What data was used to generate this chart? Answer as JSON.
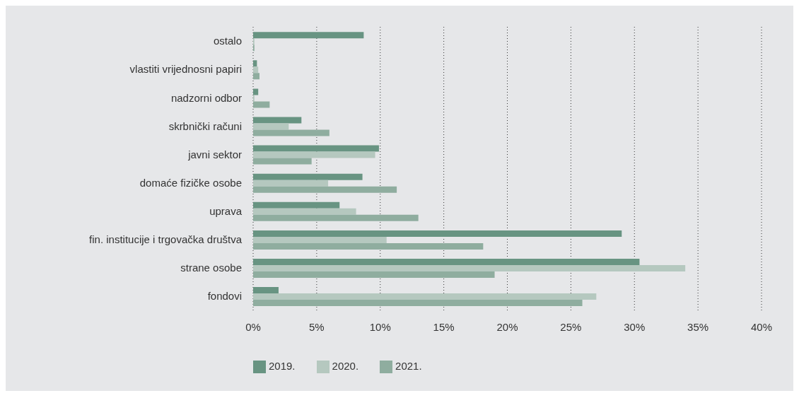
{
  "chart_data": {
    "type": "bar",
    "orientation": "horizontal",
    "categories": [
      "ostalo",
      "vlastiti vrijednosni papiri",
      "nadzorni odbor",
      "skrbnički računi",
      "javni sektor",
      "domaće fizičke osobe",
      "uprava",
      "fin. institucije i trgovačka društva",
      "strane osobe",
      "fondovi"
    ],
    "series": [
      {
        "name": "2019.",
        "color": "#689482",
        "values": [
          8.7,
          0.3,
          0.4,
          3.8,
          9.9,
          8.6,
          6.8,
          29.0,
          30.4,
          2.0
        ]
      },
      {
        "name": "2020.",
        "color": "#b5c8bf",
        "values": [
          0.1,
          0.4,
          0.1,
          2.8,
          9.6,
          5.9,
          8.1,
          10.5,
          34.0,
          27.0
        ]
      },
      {
        "name": "2021.",
        "color": "#8fad9f",
        "values": [
          0.1,
          0.5,
          1.3,
          6.0,
          4.6,
          11.3,
          13.0,
          18.1,
          19.0,
          25.9
        ]
      }
    ],
    "xlim": [
      0,
      40
    ],
    "xticks": [
      {
        "value": 0,
        "label": "0%"
      },
      {
        "value": 5,
        "label": "5%"
      },
      {
        "value": 10,
        "label": "10%"
      },
      {
        "value": 15,
        "label": "15%"
      },
      {
        "value": 20,
        "label": "20%"
      },
      {
        "value": 25,
        "label": "25%"
      },
      {
        "value": 30,
        "label": "30%"
      },
      {
        "value": 35,
        "label": "35%"
      },
      {
        "value": 40,
        "label": "40%"
      }
    ],
    "grid": "x",
    "legend": "bottom left"
  }
}
